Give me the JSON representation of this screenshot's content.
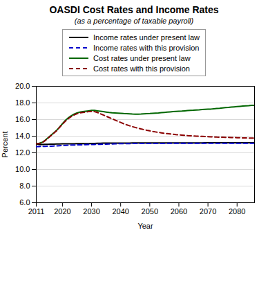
{
  "chart_data": {
    "type": "line",
    "title": "OASDI Cost Rates and Income Rates",
    "subtitle": "(as a percentage of taxable payroll)",
    "xlabel": "Year",
    "ylabel": "Percent",
    "xlim": [
      2011,
      2086
    ],
    "xticks": [
      2011,
      2020,
      2030,
      2040,
      2050,
      2060,
      2070,
      2080
    ],
    "ylim": [
      6.0,
      20.0
    ],
    "yticks": [
      {
        "value": 6,
        "label": "6.0"
      },
      {
        "value": 8,
        "label": "8.0"
      },
      {
        "value": 10,
        "label": "10.0"
      },
      {
        "value": 12,
        "label": "12.0"
      },
      {
        "value": 14,
        "label": "14.0"
      },
      {
        "value": 16,
        "label": "16.0"
      },
      {
        "value": 18,
        "label": "18.0"
      },
      {
        "value": 20,
        "label": "20.0"
      }
    ],
    "grid": "y",
    "legend": "top",
    "x": [
      2011,
      2012,
      2013,
      2014,
      2015,
      2016,
      2017,
      2018,
      2019,
      2020,
      2021,
      2022,
      2023,
      2024,
      2025,
      2026,
      2027,
      2028,
      2029,
      2030,
      2031,
      2032,
      2033,
      2034,
      2035,
      2036,
      2037,
      2038,
      2039,
      2040,
      2041,
      2042,
      2043,
      2044,
      2045,
      2046,
      2047,
      2048,
      2049,
      2050,
      2051,
      2052,
      2053,
      2054,
      2055,
      2056,
      2057,
      2058,
      2059,
      2060,
      2061,
      2062,
      2063,
      2064,
      2065,
      2066,
      2067,
      2068,
      2069,
      2070,
      2071,
      2072,
      2073,
      2074,
      2075,
      2076,
      2077,
      2078,
      2079,
      2080,
      2081,
      2082,
      2083,
      2084,
      2085,
      2086
    ],
    "series": [
      {
        "name": "Income rates under present law",
        "color": "#000000",
        "line_style": "solid",
        "values": [
          13.08,
          13.0,
          13.0,
          13.02,
          13.03,
          13.04,
          13.05,
          13.06,
          13.07,
          13.08,
          13.08,
          13.08,
          13.09,
          13.09,
          13.1,
          13.1,
          13.1,
          13.11,
          13.11,
          13.12,
          13.13,
          13.14,
          13.15,
          13.16,
          13.17,
          13.17,
          13.17,
          13.17,
          13.17,
          13.17,
          13.17,
          13.17,
          13.17,
          13.18,
          13.18,
          13.18,
          13.18,
          13.18,
          13.18,
          13.18,
          13.18,
          13.18,
          13.18,
          13.18,
          13.18,
          13.18,
          13.18,
          13.18,
          13.19,
          13.19,
          13.19,
          13.19,
          13.19,
          13.19,
          13.19,
          13.19,
          13.19,
          13.19,
          13.2,
          13.2,
          13.2,
          13.2,
          13.2,
          13.2,
          13.2,
          13.2,
          13.2,
          13.2,
          13.2,
          13.2,
          13.2,
          13.2,
          13.2,
          13.2,
          13.2,
          13.2
        ]
      },
      {
        "name": "Income rates with this provision",
        "color": "#0000cc",
        "line_style": "dashed",
        "values": [
          12.75,
          12.76,
          12.77,
          12.78,
          12.79,
          12.8,
          12.82,
          12.84,
          12.86,
          12.88,
          12.9,
          12.92,
          12.93,
          12.94,
          12.95,
          12.96,
          12.97,
          12.98,
          12.99,
          13.0,
          13.01,
          13.02,
          13.03,
          13.04,
          13.05,
          13.06,
          13.07,
          13.08,
          13.09,
          13.1,
          13.1,
          13.11,
          13.11,
          13.12,
          13.12,
          13.12,
          13.12,
          13.12,
          13.13,
          13.13,
          13.13,
          13.13,
          13.13,
          13.13,
          13.13,
          13.14,
          13.14,
          13.14,
          13.14,
          13.14,
          13.14,
          13.14,
          13.14,
          13.14,
          13.14,
          13.14,
          13.14,
          13.15,
          13.15,
          13.15,
          13.15,
          13.15,
          13.15,
          13.15,
          13.15,
          13.15,
          13.15,
          13.15,
          13.15,
          13.15,
          13.15,
          13.15,
          13.15,
          13.15,
          13.15,
          13.15
        ]
      },
      {
        "name": "Cost rates under present law",
        "color": "#006600",
        "line_style": "solid",
        "values": [
          13.08,
          13.15,
          13.25,
          13.5,
          13.8,
          14.1,
          14.4,
          14.7,
          15.1,
          15.5,
          15.9,
          16.2,
          16.45,
          16.65,
          16.8,
          16.9,
          16.95,
          17.0,
          17.05,
          17.1,
          17.1,
          17.05,
          17.0,
          16.95,
          16.9,
          16.85,
          16.82,
          16.8,
          16.78,
          16.75,
          16.72,
          16.7,
          16.68,
          16.66,
          16.65,
          16.65,
          16.66,
          16.68,
          16.7,
          16.72,
          16.75,
          16.78,
          16.8,
          16.83,
          16.86,
          16.89,
          16.92,
          16.95,
          16.98,
          17.0,
          17.02,
          17.05,
          17.08,
          17.1,
          17.12,
          17.15,
          17.17,
          17.2,
          17.22,
          17.24,
          17.26,
          17.3,
          17.33,
          17.36,
          17.4,
          17.43,
          17.46,
          17.5,
          17.53,
          17.56,
          17.59,
          17.62,
          17.65,
          17.67,
          17.7,
          17.72
        ]
      },
      {
        "name": "Cost rates with this provision",
        "color": "#8b0000",
        "line_style": "dashed",
        "values": [
          13.08,
          13.1,
          13.2,
          13.45,
          13.75,
          14.05,
          14.35,
          14.65,
          15.05,
          15.45,
          15.8,
          16.1,
          16.35,
          16.55,
          16.7,
          16.8,
          16.85,
          16.9,
          16.95,
          16.98,
          16.95,
          16.85,
          16.7,
          16.55,
          16.4,
          16.25,
          16.1,
          15.95,
          15.8,
          15.65,
          15.5,
          15.38,
          15.26,
          15.15,
          15.05,
          14.96,
          14.87,
          14.79,
          14.71,
          14.64,
          14.57,
          14.51,
          14.45,
          14.4,
          14.35,
          14.31,
          14.27,
          14.23,
          14.19,
          14.16,
          14.13,
          14.1,
          14.07,
          14.05,
          14.03,
          14.01,
          13.99,
          13.97,
          13.95,
          13.94,
          13.92,
          13.91,
          13.89,
          13.88,
          13.87,
          13.86,
          13.85,
          13.84,
          13.83,
          13.82,
          13.81,
          13.8,
          13.79,
          13.78,
          13.77,
          13.76
        ]
      }
    ]
  }
}
